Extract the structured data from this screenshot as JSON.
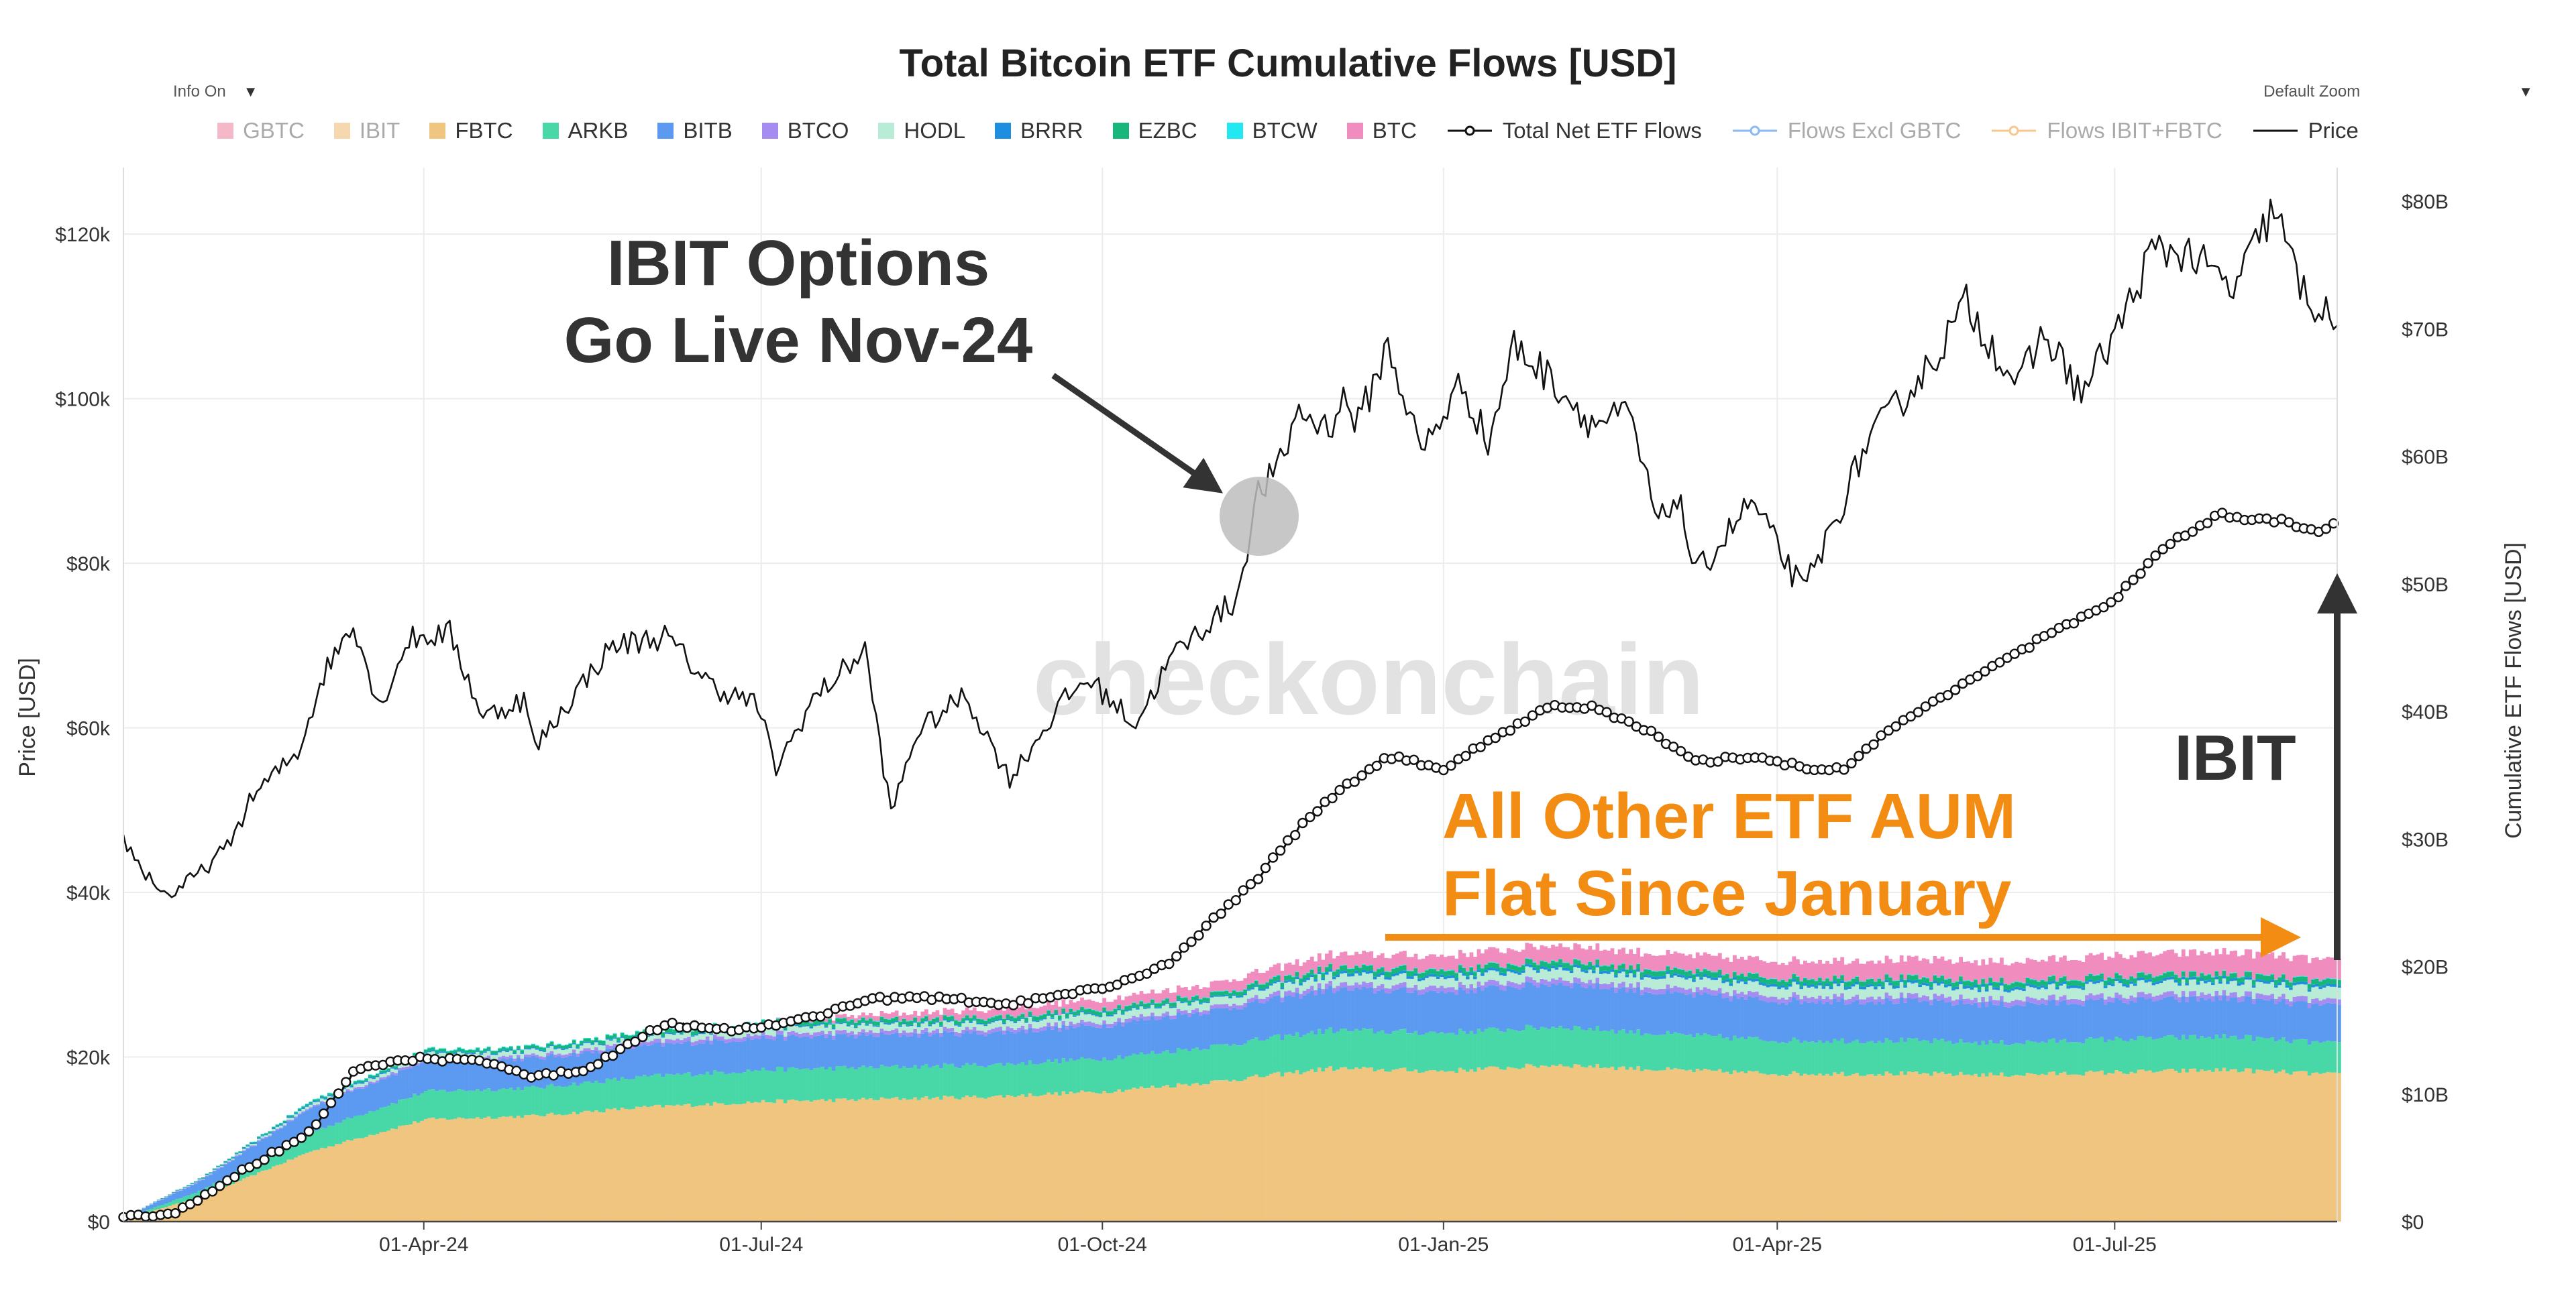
{
  "controls": {
    "info": "Info On",
    "zoom": "Default Zoom"
  },
  "colors": {
    "GBTC": "#f4b8c8",
    "IBIT": "#f6d8b0",
    "FBTC": "#f0c57f",
    "ARKB": "#48d8a8",
    "BITB": "#5b9af0",
    "BTCO": "#a58cf0",
    "HODL": "#b8ecd6",
    "BRRR": "#1e8fe0",
    "EZBC": "#17b67a",
    "BTCW": "#22e8f2",
    "BTC": "#f08cbe",
    "price": "#111111",
    "net": "#111111",
    "annotation_dark": "#333333",
    "annotation_orange": "#f28c12"
  },
  "watermark": "checkonchain",
  "annotations": {
    "options_line1": "IBIT Options",
    "options_line2": "Go Live Nov-24",
    "aum_line1": "All Other ETF AUM",
    "aum_line2": "Flat Since January",
    "ibit": "IBIT"
  },
  "legend": [
    {
      "label": "GBTC",
      "kind": "box",
      "color": "#f4b8c8",
      "dim": true
    },
    {
      "label": "IBIT",
      "kind": "box",
      "color": "#f6d8b0",
      "dim": true
    },
    {
      "label": "FBTC",
      "kind": "box",
      "color": "#f0c57f",
      "dim": false
    },
    {
      "label": "ARKB",
      "kind": "box",
      "color": "#48d8a8",
      "dim": false
    },
    {
      "label": "BITB",
      "kind": "box",
      "color": "#5b9af0",
      "dim": false
    },
    {
      "label": "BTCO",
      "kind": "box",
      "color": "#a58cf0",
      "dim": false
    },
    {
      "label": "HODL",
      "kind": "box",
      "color": "#b8ecd6",
      "dim": false
    },
    {
      "label": "BRRR",
      "kind": "box",
      "color": "#1e8fe0",
      "dim": false
    },
    {
      "label": "EZBC",
      "kind": "box",
      "color": "#17b67a",
      "dim": false
    },
    {
      "label": "BTCW",
      "kind": "box",
      "color": "#22e8f2",
      "dim": false
    },
    {
      "label": "BTC",
      "kind": "box",
      "color": "#f08cbe",
      "dim": false
    },
    {
      "label": "Total Net ETF Flows",
      "kind": "marker-line",
      "color": "#111111",
      "dim": false
    },
    {
      "label": "Flows Excl GBTC",
      "kind": "marker-line",
      "color": "#8ab8f0",
      "dim": true
    },
    {
      "label": "Flows IBIT+FBTC",
      "kind": "marker-line",
      "color": "#f6c890",
      "dim": true
    },
    {
      "label": "Price",
      "kind": "line",
      "color": "#111111",
      "dim": false
    }
  ],
  "chart_data": {
    "type": "area",
    "title": "Total Bitcoin ETF Cumulative Flows [USD]",
    "xlabel": "",
    "ylabel_left": "Price [USD]",
    "ylabel_right": "Cumulative ETF Flows [USD]",
    "x_range": [
      "2024-01-11",
      "2025-08-30"
    ],
    "ylim_left": [
      0,
      124000
    ],
    "ylim_right": [
      0,
      80
    ],
    "x_ticks": [
      {
        "date": "2024-04-01",
        "label": "01-Apr-24"
      },
      {
        "date": "2024-07-01",
        "label": "01-Jul-24"
      },
      {
        "date": "2024-10-01",
        "label": "01-Oct-24"
      },
      {
        "date": "2025-01-01",
        "label": "01-Jan-25"
      },
      {
        "date": "2025-04-01",
        "label": "01-Apr-25"
      },
      {
        "date": "2025-07-01",
        "label": "01-Jul-25"
      }
    ],
    "y_ticks_left": [
      {
        "value": 0,
        "label": "$0"
      },
      {
        "value": 20000,
        "label": "$20k"
      },
      {
        "value": 40000,
        "label": "$40k"
      },
      {
        "value": 60000,
        "label": "$60k"
      },
      {
        "value": 80000,
        "label": "$80k"
      },
      {
        "value": 100000,
        "label": "$100k"
      },
      {
        "value": 120000,
        "label": "$120k"
      }
    ],
    "y_ticks_right": [
      {
        "value": 0,
        "label": "$0"
      },
      {
        "value": 10,
        "label": "$10B"
      },
      {
        "value": 20,
        "label": "$20B"
      },
      {
        "value": 30,
        "label": "$30B"
      },
      {
        "value": 40,
        "label": "$40B"
      },
      {
        "value": 50,
        "label": "$50B"
      },
      {
        "value": 60,
        "label": "$60B"
      },
      {
        "value": 70,
        "label": "$70B"
      },
      {
        "value": 80,
        "label": "$80B"
      }
    ],
    "price_series": {
      "name": "Price",
      "unit": "USD",
      "points": [
        [
          "2024-01-11",
          46500
        ],
        [
          "2024-01-16",
          42800
        ],
        [
          "2024-01-23",
          39500
        ],
        [
          "2024-02-01",
          42500
        ],
        [
          "2024-02-08",
          45500
        ],
        [
          "2024-02-15",
          51800
        ],
        [
          "2024-02-27",
          57000
        ],
        [
          "2024-03-05",
          66500
        ],
        [
          "2024-03-13",
          73000
        ],
        [
          "2024-03-20",
          62500
        ],
        [
          "2024-03-28",
          70800
        ],
        [
          "2024-04-08",
          71500
        ],
        [
          "2024-04-17",
          61300
        ],
        [
          "2024-04-28",
          63500
        ],
        [
          "2024-05-01",
          57500
        ],
        [
          "2024-05-15",
          66200
        ],
        [
          "2024-05-22",
          70000
        ],
        [
          "2024-06-05",
          71100
        ],
        [
          "2024-06-18",
          65000
        ],
        [
          "2024-06-30",
          62800
        ],
        [
          "2024-07-05",
          55000
        ],
        [
          "2024-07-15",
          63500
        ],
        [
          "2024-07-29",
          69500
        ],
        [
          "2024-08-05",
          49500
        ],
        [
          "2024-08-12",
          59500
        ],
        [
          "2024-08-25",
          64000
        ],
        [
          "2024-09-06",
          53800
        ],
        [
          "2024-09-20",
          63000
        ],
        [
          "2024-09-27",
          66000
        ],
        [
          "2024-10-10",
          60500
        ],
        [
          "2024-10-20",
          68800
        ],
        [
          "2024-10-29",
          72500
        ],
        [
          "2024-11-06",
          75500
        ],
        [
          "2024-11-12",
          88500
        ],
        [
          "2024-11-19",
          92500
        ],
        [
          "2024-11-22",
          98500
        ],
        [
          "2024-12-01",
          96500
        ],
        [
          "2024-12-05",
          100000
        ],
        [
          "2024-12-09",
          97000
        ],
        [
          "2024-12-17",
          106500
        ],
        [
          "2024-12-26",
          93500
        ],
        [
          "2025-01-06",
          102000
        ],
        [
          "2025-01-13",
          94500
        ],
        [
          "2025-01-20",
          106500
        ],
        [
          "2025-01-31",
          102000
        ],
        [
          "2025-02-10",
          97000
        ],
        [
          "2025-02-20",
          98000
        ],
        [
          "2025-02-28",
          84500
        ],
        [
          "2025-03-05",
          88500
        ],
        [
          "2025-03-10",
          78500
        ],
        [
          "2025-03-25",
          87500
        ],
        [
          "2025-04-08",
          76500
        ],
        [
          "2025-04-16",
          84500
        ],
        [
          "2025-04-25",
          94500
        ],
        [
          "2025-05-12",
          104000
        ],
        [
          "2025-05-22",
          111500
        ],
        [
          "2025-06-05",
          101500
        ],
        [
          "2025-06-12",
          108000
        ],
        [
          "2025-06-22",
          100500
        ],
        [
          "2025-07-03",
          109500
        ],
        [
          "2025-07-11",
          117800
        ],
        [
          "2025-07-20",
          118000
        ],
        [
          "2025-08-02",
          113000
        ],
        [
          "2025-08-13",
          123300
        ],
        [
          "2025-08-20",
          113500
        ],
        [
          "2025-08-30",
          108500
        ]
      ]
    },
    "net_flows_series": {
      "name": "Total Net ETF Flows",
      "unit": "USD B",
      "points": [
        [
          "2024-01-11",
          0.3
        ],
        [
          "2024-01-25",
          0.6
        ],
        [
          "2024-02-15",
          4.5
        ],
        [
          "2024-03-01",
          7.0
        ],
        [
          "2024-03-14",
          12.0
        ],
        [
          "2024-04-01",
          12.8
        ],
        [
          "2024-04-20",
          12.5
        ],
        [
          "2024-05-01",
          11.3
        ],
        [
          "2024-05-15",
          12.0
        ],
        [
          "2024-06-05",
          15.5
        ],
        [
          "2024-06-25",
          15.0
        ],
        [
          "2024-07-15",
          16.0
        ],
        [
          "2024-07-30",
          17.5
        ],
        [
          "2024-08-20",
          17.5
        ],
        [
          "2024-09-05",
          17.0
        ],
        [
          "2024-09-20",
          17.7
        ],
        [
          "2024-10-05",
          18.5
        ],
        [
          "2024-10-20",
          20.5
        ],
        [
          "2024-11-01",
          24.0
        ],
        [
          "2024-11-12",
          27.0
        ],
        [
          "2024-11-25",
          31.5
        ],
        [
          "2024-12-05",
          34.0
        ],
        [
          "2024-12-17",
          36.5
        ],
        [
          "2025-01-01",
          35.5
        ],
        [
          "2025-01-15",
          38.0
        ],
        [
          "2025-01-30",
          40.5
        ],
        [
          "2025-02-10",
          40.3
        ],
        [
          "2025-02-25",
          38.5
        ],
        [
          "2025-03-10",
          36.0
        ],
        [
          "2025-03-25",
          36.5
        ],
        [
          "2025-04-10",
          35.5
        ],
        [
          "2025-04-20",
          35.6
        ],
        [
          "2025-05-01",
          38.5
        ],
        [
          "2025-05-20",
          42.0
        ],
        [
          "2025-06-10",
          45.5
        ],
        [
          "2025-06-30",
          48.5
        ],
        [
          "2025-07-15",
          53.0
        ],
        [
          "2025-07-30",
          55.5
        ],
        [
          "2025-08-05",
          55.0
        ],
        [
          "2025-08-15",
          55.0
        ],
        [
          "2025-08-25",
          54.0
        ],
        [
          "2025-08-30",
          54.8
        ]
      ]
    },
    "stack_order": [
      "FBTC",
      "ARKB",
      "BITB",
      "BTCO",
      "HODL",
      "BRRR",
      "EZBC",
      "BTCW",
      "BTC"
    ],
    "stacked_flows": {
      "unit": "USD B",
      "points": [
        {
          "date": "2024-01-11",
          "FBTC": 0.2,
          "ARKB": 0.05,
          "BITB": 0.1,
          "BTCO": 0.0,
          "HODL": 0.0,
          "BRRR": 0.0,
          "EZBC": 0.0,
          "BTCW": 0.0,
          "BTC": 0.0
        },
        {
          "date": "2024-02-01",
          "FBTC": 2.0,
          "ARKB": 0.5,
          "BITB": 0.8,
          "BTCO": 0.05,
          "HODL": 0.05,
          "BRRR": 0.05,
          "EZBC": 0.05,
          "BTCW": 0.0,
          "BTC": 0.0
        },
        {
          "date": "2024-03-01",
          "FBTC": 5.5,
          "ARKB": 1.5,
          "BITB": 1.9,
          "BTCO": 0.1,
          "HODL": 0.2,
          "BRRR": 0.1,
          "EZBC": 0.1,
          "BTCW": 0.05,
          "BTC": 0.0
        },
        {
          "date": "2024-04-01",
          "FBTC": 8.0,
          "ARKB": 2.2,
          "BITB": 2.4,
          "BTCO": 0.2,
          "HODL": 0.3,
          "BRRR": 0.1,
          "EZBC": 0.2,
          "BTCW": 0.05,
          "BTC": 0.0
        },
        {
          "date": "2024-05-01",
          "FBTC": 8.3,
          "ARKB": 2.2,
          "BITB": 2.3,
          "BTCO": 0.2,
          "HODL": 0.4,
          "BRRR": 0.1,
          "EZBC": 0.2,
          "BTCW": 0.05,
          "BTC": 0.0
        },
        {
          "date": "2024-06-01",
          "FBTC": 9.0,
          "ARKB": 2.4,
          "BITB": 2.4,
          "BTCO": 0.3,
          "HODL": 0.4,
          "BRRR": 0.1,
          "EZBC": 0.3,
          "BTCW": 0.05,
          "BTC": 0.0
        },
        {
          "date": "2024-07-01",
          "FBTC": 9.4,
          "ARKB": 2.5,
          "BITB": 2.5,
          "BTCO": 0.3,
          "HODL": 0.5,
          "BRRR": 0.1,
          "EZBC": 0.3,
          "BTCW": 0.05,
          "BTC": 0.0
        },
        {
          "date": "2024-08-01",
          "FBTC": 9.6,
          "ARKB": 2.5,
          "BITB": 2.5,
          "BTCO": 0.3,
          "HODL": 0.5,
          "BRRR": 0.1,
          "EZBC": 0.3,
          "BTCW": 0.05,
          "BTC": 0.4
        },
        {
          "date": "2024-09-01",
          "FBTC": 9.8,
          "ARKB": 2.5,
          "BITB": 2.5,
          "BTCO": 0.3,
          "HODL": 0.5,
          "BRRR": 0.1,
          "EZBC": 0.3,
          "BTCW": 0.05,
          "BTC": 0.6
        },
        {
          "date": "2024-10-01",
          "FBTC": 10.2,
          "ARKB": 2.6,
          "BITB": 2.6,
          "BTCO": 0.3,
          "HODL": 0.6,
          "BRRR": 0.1,
          "EZBC": 0.3,
          "BTCW": 0.05,
          "BTC": 0.7
        },
        {
          "date": "2024-11-01",
          "FBTC": 11.0,
          "ARKB": 2.8,
          "BITB": 2.8,
          "BTCO": 0.3,
          "HODL": 0.6,
          "BRRR": 0.1,
          "EZBC": 0.3,
          "BTCW": 0.05,
          "BTC": 0.8
        },
        {
          "date": "2024-12-01",
          "FBTC": 12.0,
          "ARKB": 3.0,
          "BITB": 3.2,
          "BTCO": 0.4,
          "HODL": 0.7,
          "BRRR": 0.2,
          "EZBC": 0.4,
          "BTCW": 0.05,
          "BTC": 1.0
        },
        {
          "date": "2025-01-01",
          "FBTC": 11.8,
          "ARKB": 3.0,
          "BITB": 3.2,
          "BTCO": 0.4,
          "HODL": 0.7,
          "BRRR": 0.2,
          "EZBC": 0.4,
          "BTCW": 0.05,
          "BTC": 1.1
        },
        {
          "date": "2025-02-01",
          "FBTC": 12.3,
          "ARKB": 3.0,
          "BITB": 3.4,
          "BTCO": 0.4,
          "HODL": 0.8,
          "BRRR": 0.2,
          "EZBC": 0.4,
          "BTCW": 0.05,
          "BTC": 1.2
        },
        {
          "date": "2025-03-01",
          "FBTC": 11.9,
          "ARKB": 2.8,
          "BITB": 3.2,
          "BTCO": 0.4,
          "HODL": 0.8,
          "BRRR": 0.2,
          "EZBC": 0.4,
          "BTCW": 0.05,
          "BTC": 1.2
        },
        {
          "date": "2025-04-01",
          "FBTC": 11.6,
          "ARKB": 2.6,
          "BITB": 3.1,
          "BTCO": 0.4,
          "HODL": 0.8,
          "BRRR": 0.2,
          "EZBC": 0.4,
          "BTCW": 0.05,
          "BTC": 1.3
        },
        {
          "date": "2025-05-01",
          "FBTC": 11.6,
          "ARKB": 2.6,
          "BITB": 3.1,
          "BTCO": 0.4,
          "HODL": 0.8,
          "BRRR": 0.2,
          "EZBC": 0.4,
          "BTCW": 0.05,
          "BTC": 1.4
        },
        {
          "date": "2025-06-01",
          "FBTC": 11.5,
          "ARKB": 2.5,
          "BITB": 3.0,
          "BTCO": 0.4,
          "HODL": 0.8,
          "BRRR": 0.2,
          "EZBC": 0.4,
          "BTCW": 0.05,
          "BTC": 1.5
        },
        {
          "date": "2025-07-01",
          "FBTC": 11.7,
          "ARKB": 2.6,
          "BITB": 3.0,
          "BTCO": 0.4,
          "HODL": 0.9,
          "BRRR": 0.2,
          "EZBC": 0.4,
          "BTCW": 0.05,
          "BTC": 1.6
        },
        {
          "date": "2025-08-01",
          "FBTC": 11.9,
          "ARKB": 2.6,
          "BITB": 3.0,
          "BTCO": 0.4,
          "HODL": 0.9,
          "BRRR": 0.2,
          "EZBC": 0.4,
          "BTCW": 0.05,
          "BTC": 1.7
        },
        {
          "date": "2025-08-30",
          "FBTC": 11.5,
          "ARKB": 2.4,
          "BITB": 2.9,
          "BTCO": 0.4,
          "HODL": 0.9,
          "BRRR": 0.2,
          "EZBC": 0.4,
          "BTCW": 0.05,
          "BTC": 1.6
        }
      ]
    }
  }
}
